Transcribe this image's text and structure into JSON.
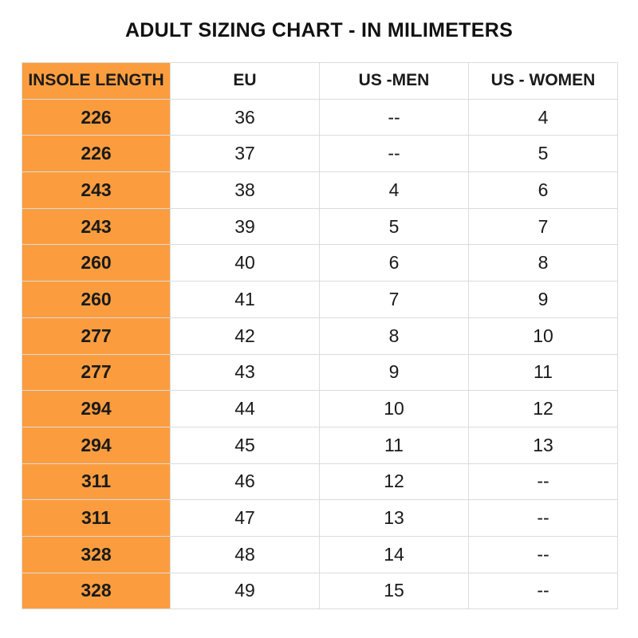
{
  "title": "ADULT SIZING CHART - IN MILIMETERS",
  "colors": {
    "accent": "#fb9d3f",
    "grid": "#dcdcdc",
    "text": "#1a1a1a"
  },
  "chart_data": {
    "type": "table",
    "title": "ADULT SIZING CHART - IN MILIMETERS",
    "columns": [
      "INSOLE LENGTH",
      "EU",
      "US -MEN",
      "US - WOMEN"
    ],
    "rows": [
      [
        "226",
        "36",
        "--",
        "4"
      ],
      [
        "226",
        "37",
        "--",
        "5"
      ],
      [
        "243",
        "38",
        "4",
        "6"
      ],
      [
        "243",
        "39",
        "5",
        "7"
      ],
      [
        "260",
        "40",
        "6",
        "8"
      ],
      [
        "260",
        "41",
        "7",
        "9"
      ],
      [
        "277",
        "42",
        "8",
        "10"
      ],
      [
        "277",
        "43",
        "9",
        "11"
      ],
      [
        "294",
        "44",
        "10",
        "12"
      ],
      [
        "294",
        "45",
        "11",
        "13"
      ],
      [
        "311",
        "46",
        "12",
        "--"
      ],
      [
        "311",
        "47",
        "13",
        "--"
      ],
      [
        "328",
        "48",
        "14",
        "--"
      ],
      [
        "328",
        "49",
        "15",
        "--"
      ]
    ]
  }
}
